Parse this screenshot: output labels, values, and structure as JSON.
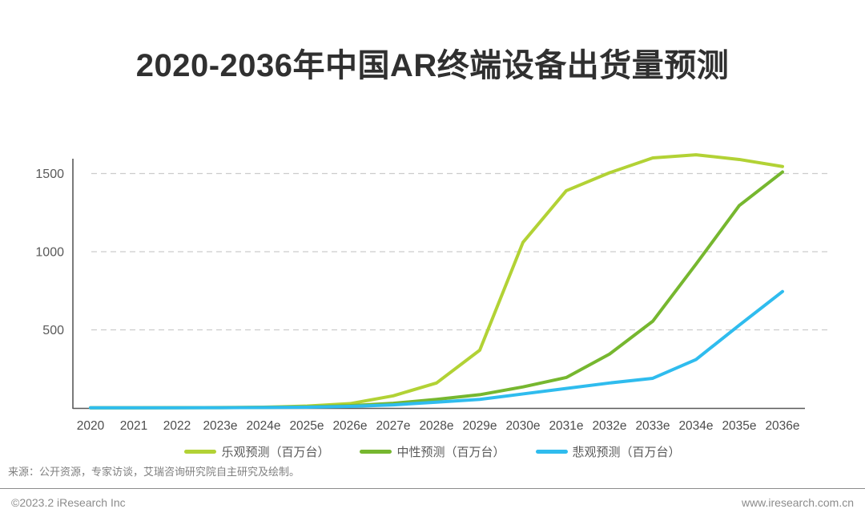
{
  "page": {
    "title": "2020-2036年中国AR终端设备出货量预测",
    "source_note": "来源：公开资源，专家访谈，艾瑞咨询研究院自主研究及绘制。",
    "footer": {
      "left": "©2023.2 iResearch Inc",
      "right": "www.iresearch.com.cn"
    }
  },
  "colors": {
    "title_text": "#303030",
    "axis_line": "#595959",
    "tick_text": "#4d4d4d",
    "gridline": "#cccccc",
    "optimistic": "#b2d235",
    "neutral": "#76b72f",
    "pessimistic": "#2fbcee",
    "muted_text": "#8c8c8c"
  },
  "chart_data": {
    "type": "line",
    "title": "2020-2036年中国AR终端设备出货量预测",
    "categories": [
      "2020",
      "2021",
      "2022",
      "2023e",
      "2024e",
      "2025e",
      "2026e",
      "2027e",
      "2028e",
      "2029e",
      "2030e",
      "2031e",
      "2032e",
      "2033e",
      "2034e",
      "2035e",
      "2036e"
    ],
    "series": [
      {
        "name": "乐观预测（百万台）",
        "color": "#b2d235",
        "values": [
          1,
          1,
          2,
          3,
          5,
          12,
          28,
          78,
          160,
          370,
          1060,
          1390,
          1505,
          1600,
          1620,
          1590,
          1545
        ]
      },
      {
        "name": "中性预测（百万台）",
        "color": "#76b72f",
        "values": [
          1,
          1,
          2,
          2,
          4,
          8,
          15,
          30,
          55,
          85,
          135,
          195,
          345,
          555,
          920,
          1295,
          1510
        ]
      },
      {
        "name": "悲观预测（百万台）",
        "color": "#2fbcee",
        "values": [
          1,
          1,
          1,
          2,
          3,
          5,
          10,
          20,
          37,
          55,
          90,
          125,
          160,
          190,
          310,
          530,
          745
        ]
      }
    ],
    "ylabel": "",
    "xlabel": "",
    "ylim": [
      0,
      1650
    ],
    "yticks": [
      500,
      1000,
      1500
    ],
    "grid": "horizontal-dashed",
    "legend_position": "bottom"
  }
}
